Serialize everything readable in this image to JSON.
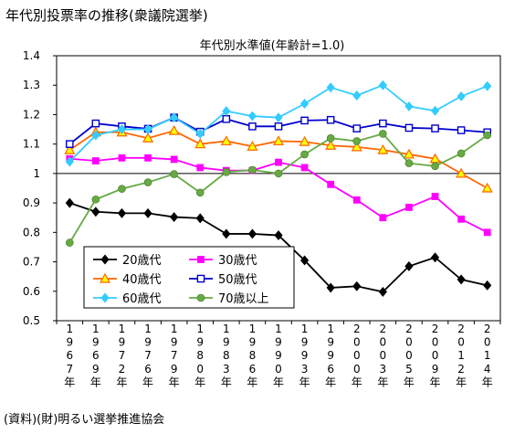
{
  "page_title": "年代別投票率の推移(衆議院選挙)",
  "source_note": "(資料)(財)明るい選挙推進協会",
  "chart_data": {
    "type": "line",
    "title": "年代別水準値(年齢計=1.0)",
    "xlabel": "",
    "ylabel": "",
    "ylim": [
      0.5,
      1.4
    ],
    "ytick_step": 0.1,
    "yticks": [
      "0.5",
      "0.6",
      "0.7",
      "0.8",
      "0.9",
      "1",
      "1.1",
      "1.2",
      "1.3",
      "1.4"
    ],
    "reference_line": 1.0,
    "grid": false,
    "legend_position": "bottom-left",
    "categories": [
      "1967年",
      "1969年",
      "1972年",
      "1976年",
      "1979年",
      "1980年",
      "1983年",
      "1986年",
      "1990年",
      "1993年",
      "1996年",
      "2000年",
      "2003年",
      "2005年",
      "2009年",
      "2012年",
      "2014年"
    ],
    "series": [
      {
        "name": "20歳代",
        "color": "#000000",
        "marker": "diamond",
        "values": [
          0.9,
          0.87,
          0.865,
          0.865,
          0.852,
          0.848,
          0.795,
          0.795,
          0.79,
          0.705,
          0.612,
          0.617,
          0.598,
          0.685,
          0.715,
          0.64,
          0.62
        ]
      },
      {
        "name": "30歳代",
        "color": "#ff00ff",
        "marker": "square",
        "values": [
          1.05,
          1.043,
          1.053,
          1.053,
          1.048,
          1.02,
          1.01,
          1.01,
          1.038,
          1.02,
          0.963,
          0.91,
          0.85,
          0.885,
          0.922,
          0.845,
          0.8
        ]
      },
      {
        "name": "40歳代",
        "color": "#ff6600",
        "marker": "triangle",
        "values": [
          1.08,
          1.14,
          1.14,
          1.12,
          1.145,
          1.1,
          1.11,
          1.092,
          1.11,
          1.108,
          1.095,
          1.09,
          1.08,
          1.065,
          1.05,
          1.0,
          0.95
        ]
      },
      {
        "name": "50歳代",
        "color": "#0000cc",
        "marker": "square-open",
        "values": [
          1.1,
          1.17,
          1.16,
          1.152,
          1.19,
          1.142,
          1.185,
          1.16,
          1.16,
          1.18,
          1.182,
          1.153,
          1.17,
          1.155,
          1.153,
          1.147,
          1.14
        ]
      },
      {
        "name": "60歳代",
        "color": "#33ccff",
        "marker": "diamond",
        "values": [
          1.04,
          1.13,
          1.15,
          1.15,
          1.19,
          1.135,
          1.212,
          1.195,
          1.19,
          1.237,
          1.292,
          1.265,
          1.3,
          1.228,
          1.213,
          1.262,
          1.297
        ]
      },
      {
        "name": "70歳以上",
        "color": "#66aa44",
        "marker": "circle",
        "values": [
          0.765,
          0.912,
          0.948,
          0.97,
          0.998,
          0.935,
          1.005,
          1.012,
          1.0,
          1.065,
          1.12,
          1.11,
          1.135,
          1.035,
          1.025,
          1.068,
          1.13
        ]
      }
    ]
  }
}
